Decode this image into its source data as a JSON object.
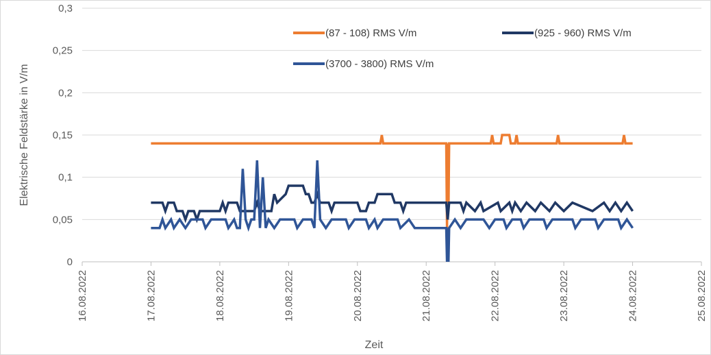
{
  "chart_data": {
    "type": "line",
    "title": "",
    "xlabel": "Zeit",
    "ylabel": "Elektrische Feldstärke in V/m",
    "xlim": [
      "16.08.2022",
      "25.08.2022"
    ],
    "ylim": [
      0,
      0.3
    ],
    "x_ticks": [
      "16.08.2022",
      "17.08.2022",
      "18.08.2022",
      "19.08.2022",
      "20.08.2022",
      "21.08.2022",
      "22.08.2022",
      "23.08.2022",
      "24.08.2022",
      "25.08.2022"
    ],
    "y_ticks": [
      "0",
      "0,05",
      "0,1",
      "0,15",
      "0,2",
      "0,25",
      "0,3"
    ],
    "grid": "horizontal",
    "legend_position": "top-right",
    "series": [
      {
        "name": "(87 - 108) RMS  V/m",
        "color": "#ED7D31",
        "points": [
          [
            "17.08.2022 00:00",
            0.14
          ],
          [
            "20.08.2022 08:00",
            0.14
          ],
          [
            "20.08.2022 08:30",
            0.15
          ],
          [
            "20.08.2022 09:00",
            0.14
          ],
          [
            "21.08.2022 07:00",
            0.14
          ],
          [
            "21.08.2022 07:15",
            0.04
          ],
          [
            "21.08.2022 07:30",
            0.14
          ],
          [
            "21.08.2022 07:45",
            0.06
          ],
          [
            "21.08.2022 08:00",
            0.14
          ],
          [
            "21.08.2022 22:30",
            0.14
          ],
          [
            "21.08.2022 23:00",
            0.15
          ],
          [
            "21.08.2022 23:30",
            0.14
          ],
          [
            "22.08.2022 02:00",
            0.14
          ],
          [
            "22.08.2022 02:30",
            0.15
          ],
          [
            "22.08.2022 05:00",
            0.15
          ],
          [
            "22.08.2022 05:30",
            0.14
          ],
          [
            "22.08.2022 07:00",
            0.14
          ],
          [
            "22.08.2022 07:30",
            0.15
          ],
          [
            "22.08.2022 08:00",
            0.14
          ],
          [
            "22.08.2022 21:30",
            0.14
          ],
          [
            "22.08.2022 22:00",
            0.15
          ],
          [
            "22.08.2022 22:30",
            0.14
          ],
          [
            "23.08.2022 20:30",
            0.14
          ],
          [
            "23.08.2022 21:00",
            0.15
          ],
          [
            "23.08.2022 21:30",
            0.14
          ],
          [
            "24.08.2022 00:00",
            0.14
          ]
        ]
      },
      {
        "name": "(925 - 960) RMS  V/m",
        "color": "#203864",
        "points": [
          [
            "17.08.2022 00:00",
            0.07
          ],
          [
            "17.08.2022 04:00",
            0.07
          ],
          [
            "17.08.2022 05:00",
            0.06
          ],
          [
            "17.08.2022 06:00",
            0.07
          ],
          [
            "17.08.2022 08:00",
            0.07
          ],
          [
            "17.08.2022 09:00",
            0.06
          ],
          [
            "17.08.2022 11:00",
            0.06
          ],
          [
            "17.08.2022 12:00",
            0.05
          ],
          [
            "17.08.2022 13:00",
            0.06
          ],
          [
            "17.08.2022 15:00",
            0.06
          ],
          [
            "17.08.2022 16:00",
            0.05
          ],
          [
            "17.08.2022 17:00",
            0.06
          ],
          [
            "18.08.2022 00:00",
            0.06
          ],
          [
            "18.08.2022 01:00",
            0.07
          ],
          [
            "18.08.2022 02:00",
            0.06
          ],
          [
            "18.08.2022 03:00",
            0.07
          ],
          [
            "18.08.2022 06:00",
            0.07
          ],
          [
            "18.08.2022 07:00",
            0.06
          ],
          [
            "18.08.2022 12:00",
            0.06
          ],
          [
            "18.08.2022 13:00",
            0.07
          ],
          [
            "18.08.2022 14:00",
            0.06
          ],
          [
            "18.08.2022 18:00",
            0.06
          ],
          [
            "18.08.2022 19:00",
            0.08
          ],
          [
            "18.08.2022 20:00",
            0.07
          ],
          [
            "18.08.2022 23:00",
            0.08
          ],
          [
            "19.08.2022 00:00",
            0.09
          ],
          [
            "19.08.2022 05:00",
            0.09
          ],
          [
            "19.08.2022 06:00",
            0.08
          ],
          [
            "19.08.2022 07:00",
            0.08
          ],
          [
            "19.08.2022 08:00",
            0.07
          ],
          [
            "19.08.2022 09:00",
            0.07
          ],
          [
            "19.08.2022 10:00",
            0.08
          ],
          [
            "19.08.2022 11:00",
            0.07
          ],
          [
            "19.08.2022 14:00",
            0.07
          ],
          [
            "19.08.2022 15:00",
            0.06
          ],
          [
            "19.08.2022 16:00",
            0.07
          ],
          [
            "20.08.2022 00:00",
            0.07
          ],
          [
            "20.08.2022 01:00",
            0.06
          ],
          [
            "20.08.2022 03:00",
            0.06
          ],
          [
            "20.08.2022 04:00",
            0.07
          ],
          [
            "20.08.2022 06:00",
            0.07
          ],
          [
            "20.08.2022 07:00",
            0.08
          ],
          [
            "20.08.2022 12:00",
            0.08
          ],
          [
            "20.08.2022 13:00",
            0.07
          ],
          [
            "20.08.2022 15:00",
            0.07
          ],
          [
            "20.08.2022 16:00",
            0.06
          ],
          [
            "20.08.2022 17:00",
            0.07
          ],
          [
            "21.08.2022 07:00",
            0.07
          ],
          [
            "21.08.2022 07:30",
            0.05
          ],
          [
            "21.08.2022 08:00",
            0.07
          ],
          [
            "21.08.2022 12:00",
            0.07
          ],
          [
            "21.08.2022 13:00",
            0.06
          ],
          [
            "21.08.2022 14:00",
            0.07
          ],
          [
            "21.08.2022 17:00",
            0.06
          ],
          [
            "21.08.2022 19:00",
            0.07
          ],
          [
            "21.08.2022 20:00",
            0.06
          ],
          [
            "22.08.2022 01:00",
            0.07
          ],
          [
            "22.08.2022 02:00",
            0.06
          ],
          [
            "22.08.2022 05:00",
            0.07
          ],
          [
            "22.08.2022 06:00",
            0.06
          ],
          [
            "22.08.2022 07:00",
            0.07
          ],
          [
            "22.08.2022 09:00",
            0.06
          ],
          [
            "22.08.2022 11:00",
            0.07
          ],
          [
            "22.08.2022 14:00",
            0.06
          ],
          [
            "22.08.2022 16:00",
            0.07
          ],
          [
            "22.08.2022 19:00",
            0.06
          ],
          [
            "22.08.2022 21:00",
            0.07
          ],
          [
            "23.08.2022 00:00",
            0.06
          ],
          [
            "23.08.2022 03:00",
            0.07
          ],
          [
            "23.08.2022 10:00",
            0.06
          ],
          [
            "23.08.2022 14:00",
            0.07
          ],
          [
            "23.08.2022 16:00",
            0.06
          ],
          [
            "23.08.2022 18:00",
            0.07
          ],
          [
            "23.08.2022 20:00",
            0.06
          ],
          [
            "23.08.2022 22:00",
            0.07
          ],
          [
            "24.08.2022 00:00",
            0.06
          ]
        ]
      },
      {
        "name": "(3700 - 3800) RMS  V/m",
        "color": "#2F5597",
        "points": [
          [
            "17.08.2022 00:00",
            0.04
          ],
          [
            "17.08.2022 03:00",
            0.04
          ],
          [
            "17.08.2022 04:00",
            0.05
          ],
          [
            "17.08.2022 05:00",
            0.04
          ],
          [
            "17.08.2022 07:00",
            0.05
          ],
          [
            "17.08.2022 08:00",
            0.04
          ],
          [
            "17.08.2022 10:00",
            0.05
          ],
          [
            "17.08.2022 12:00",
            0.04
          ],
          [
            "17.08.2022 14:00",
            0.05
          ],
          [
            "17.08.2022 18:00",
            0.05
          ],
          [
            "17.08.2022 19:00",
            0.04
          ],
          [
            "17.08.2022 21:00",
            0.05
          ],
          [
            "18.08.2022 02:00",
            0.05
          ],
          [
            "18.08.2022 03:00",
            0.04
          ],
          [
            "18.08.2022 05:00",
            0.05
          ],
          [
            "18.08.2022 06:00",
            0.04
          ],
          [
            "18.08.2022 07:00",
            0.04
          ],
          [
            "18.08.2022 08:00",
            0.11
          ],
          [
            "18.08.2022 09:00",
            0.05
          ],
          [
            "18.08.2022 10:00",
            0.04
          ],
          [
            "18.08.2022 11:00",
            0.05
          ],
          [
            "18.08.2022 12:00",
            0.05
          ],
          [
            "18.08.2022 13:00",
            0.12
          ],
          [
            "18.08.2022 14:00",
            0.04
          ],
          [
            "18.08.2022 15:00",
            0.1
          ],
          [
            "18.08.2022 16:00",
            0.04
          ],
          [
            "18.08.2022 17:00",
            0.05
          ],
          [
            "18.08.2022 19:00",
            0.04
          ],
          [
            "18.08.2022 21:00",
            0.05
          ],
          [
            "19.08.2022 02:00",
            0.05
          ],
          [
            "19.08.2022 03:00",
            0.04
          ],
          [
            "19.08.2022 05:00",
            0.05
          ],
          [
            "19.08.2022 08:00",
            0.05
          ],
          [
            "19.08.2022 09:00",
            0.04
          ],
          [
            "19.08.2022 10:00",
            0.12
          ],
          [
            "19.08.2022 11:00",
            0.05
          ],
          [
            "19.08.2022 13:00",
            0.04
          ],
          [
            "19.08.2022 15:00",
            0.05
          ],
          [
            "19.08.2022 20:00",
            0.05
          ],
          [
            "19.08.2022 21:00",
            0.04
          ],
          [
            "19.08.2022 23:00",
            0.05
          ],
          [
            "20.08.2022 03:00",
            0.05
          ],
          [
            "20.08.2022 04:00",
            0.04
          ],
          [
            "20.08.2022 06:00",
            0.05
          ],
          [
            "20.08.2022 07:00",
            0.04
          ],
          [
            "20.08.2022 09:00",
            0.05
          ],
          [
            "20.08.2022 14:00",
            0.05
          ],
          [
            "20.08.2022 15:00",
            0.04
          ],
          [
            "20.08.2022 18:00",
            0.05
          ],
          [
            "20.08.2022 20:00",
            0.04
          ],
          [
            "21.08.2022 07:00",
            0.04
          ],
          [
            "21.08.2022 07:15",
            0.0
          ],
          [
            "21.08.2022 07:30",
            0.04
          ],
          [
            "21.08.2022 07:45",
            0.0
          ],
          [
            "21.08.2022 08:00",
            0.04
          ],
          [
            "21.08.2022 10:00",
            0.05
          ],
          [
            "21.08.2022 12:00",
            0.04
          ],
          [
            "21.08.2022 14:00",
            0.05
          ],
          [
            "21.08.2022 20:00",
            0.05
          ],
          [
            "21.08.2022 22:00",
            0.04
          ],
          [
            "22.08.2022 00:00",
            0.05
          ],
          [
            "22.08.2022 03:00",
            0.05
          ],
          [
            "22.08.2022 04:00",
            0.04
          ],
          [
            "22.08.2022 06:00",
            0.05
          ],
          [
            "22.08.2022 09:00",
            0.05
          ],
          [
            "22.08.2022 10:00",
            0.04
          ],
          [
            "22.08.2022 12:00",
            0.05
          ],
          [
            "22.08.2022 17:00",
            0.05
          ],
          [
            "22.08.2022 18:00",
            0.04
          ],
          [
            "22.08.2022 20:00",
            0.05
          ],
          [
            "23.08.2022 03:00",
            0.05
          ],
          [
            "23.08.2022 04:00",
            0.04
          ],
          [
            "23.08.2022 06:00",
            0.05
          ],
          [
            "23.08.2022 11:00",
            0.05
          ],
          [
            "23.08.2022 12:00",
            0.04
          ],
          [
            "23.08.2022 14:00",
            0.05
          ],
          [
            "23.08.2022 19:00",
            0.05
          ],
          [
            "23.08.2022 20:00",
            0.04
          ],
          [
            "23.08.2022 22:00",
            0.05
          ],
          [
            "24.08.2022 00:00",
            0.04
          ]
        ]
      }
    ]
  }
}
